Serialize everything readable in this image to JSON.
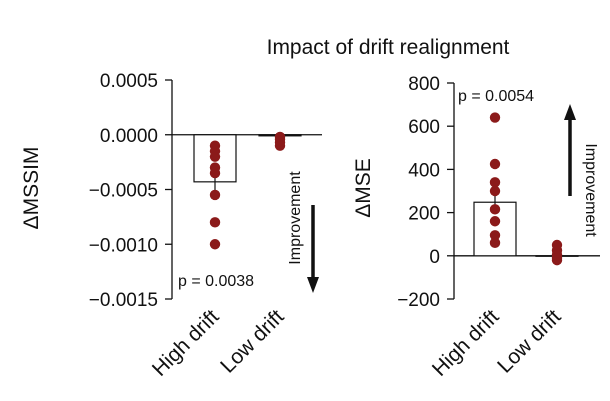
{
  "title": "Impact of drift realignment",
  "colors": {
    "point": "#8b1a1a",
    "axis": "#111111",
    "bar_fill": "#ffffff",
    "bar_stroke": "#111111"
  },
  "chart_data": [
    {
      "type": "bar",
      "ylabel": "ΔMSSIM",
      "ylim": [
        -0.0015,
        0.0005
      ],
      "ytick_values": [
        0.0005,
        0.0,
        -0.0005,
        -0.001,
        -0.0015
      ],
      "ytick_labels": [
        "0.0005",
        "0.0000",
        "−0.0005",
        "−0.0010",
        "−0.0015"
      ],
      "categories": [
        "High drift",
        "Low drift"
      ],
      "values": [
        -0.00043,
        -1e-05
      ],
      "error": [
        8e-05,
        1e-05
      ],
      "points": [
        [
          -0.0001,
          -0.00015,
          -0.0002,
          -0.0003,
          -0.00035,
          -0.00055,
          -0.0008,
          -0.001
        ],
        [
          -2e-05,
          -4e-05,
          -7e-05,
          -0.0001
        ]
      ],
      "annotation": "p = 0.0038",
      "arrow_label": "Improvement",
      "arrow_direction": "down"
    },
    {
      "type": "bar",
      "ylabel": "ΔMSE",
      "ylim": [
        -200,
        800
      ],
      "ytick_values": [
        800,
        600,
        400,
        200,
        0,
        -200
      ],
      "ytick_labels": [
        "800",
        "600",
        "400",
        "200",
        "0",
        "−200"
      ],
      "categories": [
        "High drift",
        "Low drift"
      ],
      "values": [
        248,
        -2
      ],
      "error": [
        55,
        4
      ],
      "points": [
        [
          640,
          425,
          340,
          300,
          215,
          160,
          95,
          60
        ],
        [
          50,
          25,
          5,
          -10,
          -20
        ]
      ],
      "annotation": "p = 0.0054",
      "arrow_label": "Improvement",
      "arrow_direction": "up"
    }
  ]
}
